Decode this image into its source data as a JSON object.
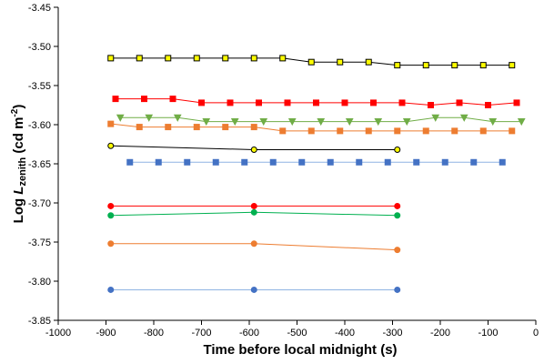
{
  "chart_data": {
    "type": "scatter",
    "title": "",
    "xlabel": "Time before local midnight (s)",
    "ylabel": {
      "prefix": "Log ",
      "var": "L",
      "sub": "zenith",
      "unit_open": " (cd m",
      "unit_sup": "-2",
      "unit_close": ")"
    },
    "xlim": [
      -1000,
      0
    ],
    "ylim": [
      -3.85,
      -3.45
    ],
    "xticks": [
      -1000,
      -900,
      -800,
      -700,
      -600,
      -500,
      -400,
      -300,
      -200,
      -100,
      0
    ],
    "yticks": [
      -3.45,
      -3.5,
      -3.55,
      -3.6,
      -3.65,
      -3.7,
      -3.75,
      -3.8,
      -3.85
    ],
    "ytick_labels": [
      "-3.45",
      "-3.50",
      "-3.55",
      "-3.60",
      "-3.65",
      "-3.70",
      "-3.75",
      "-3.80",
      "-3.85"
    ],
    "grid": false,
    "series": [
      {
        "marker": "square",
        "color": "#000000",
        "fill": "#ffff00",
        "edge": "#000000",
        "x": [
          -890,
          -830,
          -770,
          -710,
          -650,
          -590,
          -530,
          -470,
          -410,
          -350,
          -290,
          -230,
          -170,
          -110,
          -50
        ],
        "y": [
          -3.515,
          -3.515,
          -3.515,
          -3.515,
          -3.515,
          -3.515,
          -3.515,
          -3.52,
          -3.52,
          -3.52,
          -3.524,
          -3.524,
          -3.524,
          -3.524,
          -3.524
        ]
      },
      {
        "marker": "square",
        "color": "#ff0000",
        "fill": "#ff0000",
        "edge": "#ff0000",
        "x": [
          -880,
          -820,
          -760,
          -700,
          -640,
          -580,
          -520,
          -460,
          -400,
          -340,
          -280,
          -220,
          -160,
          -100,
          -40
        ],
        "y": [
          -3.567,
          -3.567,
          -3.567,
          -3.572,
          -3.572,
          -3.572,
          -3.572,
          -3.572,
          -3.572,
          -3.572,
          -3.572,
          -3.575,
          -3.572,
          -3.575,
          -3.572
        ]
      },
      {
        "marker": "tri",
        "color": "#70ad47",
        "fill": "#70ad47",
        "edge": "#70ad47",
        "x": [
          -870,
          -810,
          -750,
          -690,
          -630,
          -570,
          -510,
          -450,
          -390,
          -330,
          -270,
          -210,
          -150,
          -90,
          -30
        ],
        "y": [
          -3.591,
          -3.591,
          -3.591,
          -3.596,
          -3.596,
          -3.596,
          -3.596,
          -3.596,
          -3.596,
          -3.596,
          -3.596,
          -3.591,
          -3.591,
          -3.596,
          -3.596
        ]
      },
      {
        "marker": "square",
        "color": "#ed7d31",
        "fill": "#ed7d31",
        "edge": "#ed7d31",
        "x": [
          -890,
          -830,
          -770,
          -710,
          -650,
          -590,
          -530,
          -470,
          -410,
          -350,
          -290,
          -230,
          -170,
          -110,
          -50
        ],
        "y": [
          -3.599,
          -3.603,
          -3.603,
          -3.603,
          -3.603,
          -3.603,
          -3.608,
          -3.608,
          -3.608,
          -3.608,
          -3.608,
          -3.608,
          -3.608,
          -3.608,
          -3.608
        ]
      },
      {
        "marker": "circle",
        "color": "#000000",
        "fill": "#ffff00",
        "edge": "#000000",
        "x": [
          -890,
          -590,
          -290
        ],
        "y": [
          -3.627,
          -3.632,
          -3.632
        ]
      },
      {
        "marker": "square",
        "color": "#8fb4e3",
        "fill": "#4472c4",
        "edge": "#4472c4",
        "x": [
          -850,
          -790,
          -730,
          -670,
          -610,
          -550,
          -490,
          -430,
          -370,
          -310,
          -250,
          -190,
          -130,
          -70
        ],
        "y": [
          -3.648,
          -3.648,
          -3.648,
          -3.648,
          -3.648,
          -3.648,
          -3.648,
          -3.648,
          -3.648,
          -3.648,
          -3.648,
          -3.648,
          -3.648,
          -3.648
        ]
      },
      {
        "marker": "circle",
        "color": "#ff0000",
        "fill": "#ff0000",
        "edge": "#ff0000",
        "x": [
          -890,
          -590,
          -290
        ],
        "y": [
          -3.704,
          -3.704,
          -3.704
        ]
      },
      {
        "marker": "circle",
        "color": "#00b050",
        "fill": "#00b050",
        "edge": "#00b050",
        "x": [
          -890,
          -590,
          -290
        ],
        "y": [
          -3.716,
          -3.712,
          -3.716
        ]
      },
      {
        "marker": "circle",
        "color": "#ed7d31",
        "fill": "#ed7d31",
        "edge": "#ed7d31",
        "x": [
          -890,
          -590,
          -290
        ],
        "y": [
          -3.752,
          -3.752,
          -3.76
        ]
      },
      {
        "marker": "circle",
        "color": "#8fb4e3",
        "fill": "#4472c4",
        "edge": "#4472c4",
        "x": [
          -890,
          -590,
          -290
        ],
        "y": [
          -3.811,
          -3.811,
          -3.811
        ]
      }
    ]
  }
}
